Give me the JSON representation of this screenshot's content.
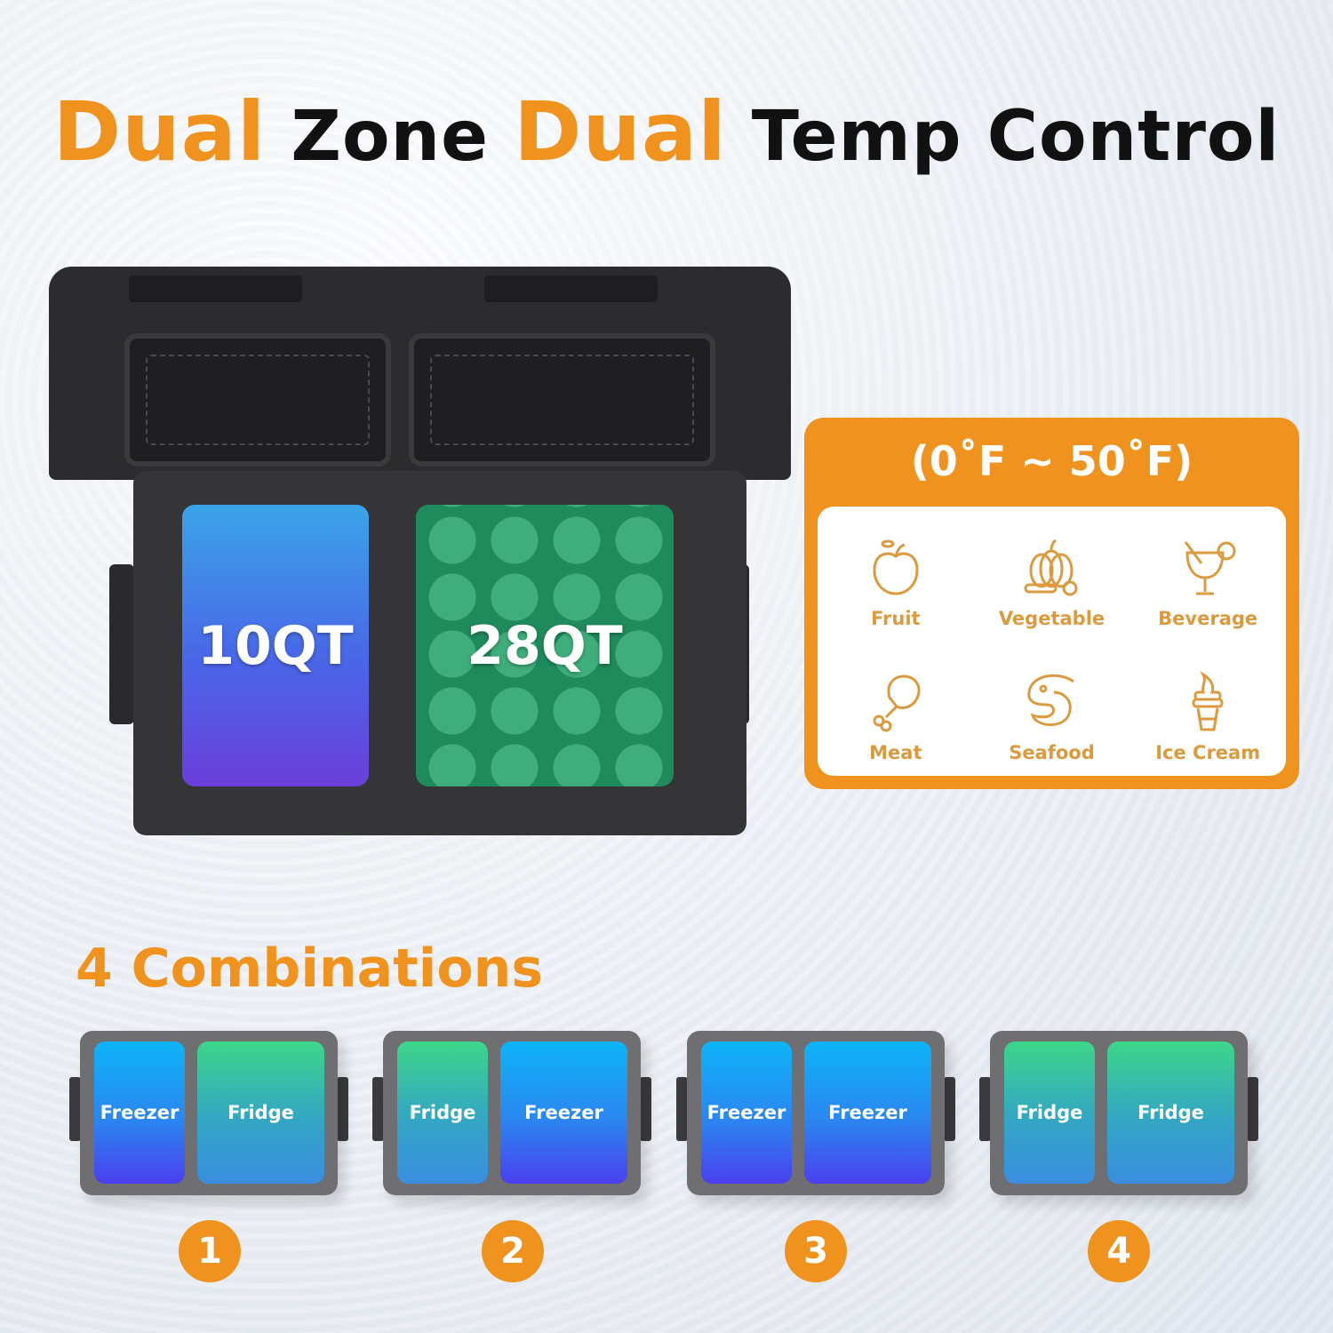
{
  "title": {
    "w1": "Dual",
    "w2": "Zone",
    "w3": "Dual",
    "w4": "Temp Control"
  },
  "cooler": {
    "zone_left": "10QT",
    "zone_right": "28QT"
  },
  "temp_panel": {
    "range": "(0˚F ~ 50˚F)",
    "items": [
      {
        "label": "Fruit",
        "icon": "apple-icon"
      },
      {
        "label": "Vegetable",
        "icon": "pumpkin-icon"
      },
      {
        "label": "Beverage",
        "icon": "cocktail-icon"
      },
      {
        "label": "Meat",
        "icon": "drumstick-icon"
      },
      {
        "label": "Seafood",
        "icon": "shrimp-icon"
      },
      {
        "label": "Ice Cream",
        "icon": "ice-cream-icon"
      }
    ]
  },
  "combinations": {
    "title": "4 Combinations",
    "items": [
      {
        "number": "1",
        "left": "Freezer",
        "right": "Fridge"
      },
      {
        "number": "2",
        "left": "Fridge",
        "right": "Freezer"
      },
      {
        "number": "3",
        "left": "Freezer",
        "right": "Freezer"
      },
      {
        "number": "4",
        "left": "Fridge",
        "right": "Fridge"
      }
    ]
  },
  "colors": {
    "accent": "#f0921e",
    "freezer": "#2b86f0",
    "fridge": "#3dd68a"
  }
}
